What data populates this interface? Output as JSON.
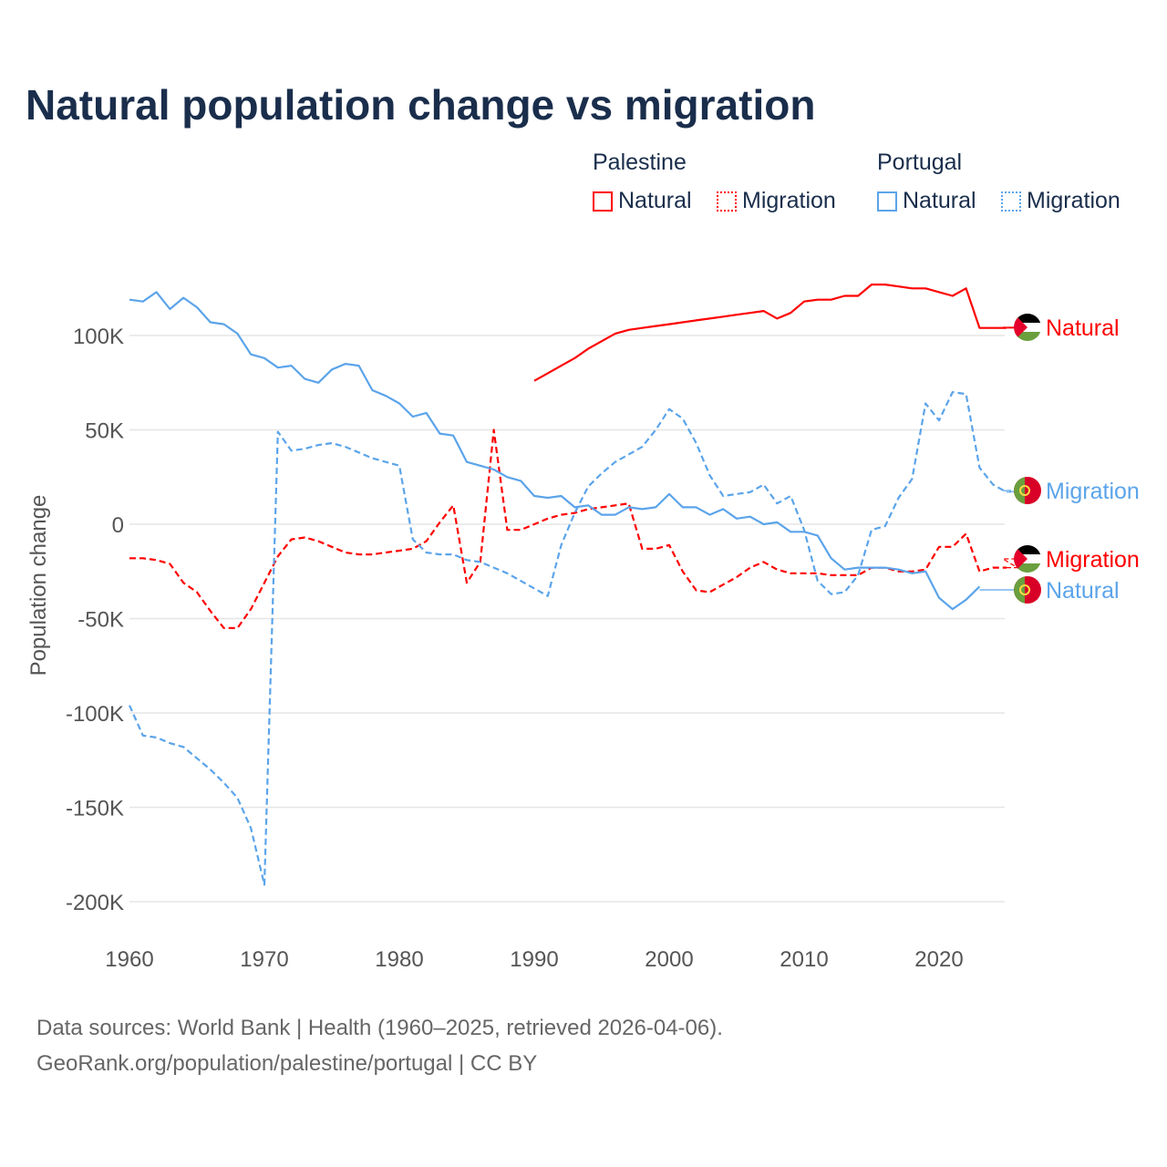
{
  "title": "Natural population change vs migration",
  "legend": {
    "groups": [
      {
        "name": "Palestine",
        "color": "#ff0000",
        "items": [
          "Natural",
          "Migration"
        ]
      },
      {
        "name": "Portugal",
        "color": "#5ba4ea",
        "items": [
          "Natural",
          "Migration"
        ]
      }
    ]
  },
  "footer": {
    "line1": "Data sources: World Bank | Health (1960–2025, retrieved 2026-04-06).",
    "line2": "GeoRank.org/population/palestine/portugal | CC BY"
  },
  "chart_data": {
    "type": "line",
    "title": "Natural population change vs migration",
    "xlabel": "",
    "ylabel": "Population change",
    "xlim": [
      1960,
      2025
    ],
    "ylim": [
      -200000,
      130000
    ],
    "x_ticks": [
      1960,
      1970,
      1980,
      1990,
      2000,
      2010,
      2020
    ],
    "x_tick_labels": [
      "1960",
      "1970",
      "1980",
      "1990",
      "2000",
      "2010",
      "2020"
    ],
    "y_ticks": [
      100000,
      50000,
      0,
      -50000,
      -100000,
      -150000,
      -200000
    ],
    "y_tick_labels": [
      "100K",
      "50K",
      "0",
      "-50K",
      "-100K",
      "-150K",
      "-200K"
    ],
    "grid": true,
    "units": "thousands",
    "series": [
      {
        "name": "Palestine Natural",
        "label": "Natural",
        "country": "Palestine",
        "color": "#ff0000",
        "dash": false,
        "start": 1990,
        "values": [
          76,
          80,
          84,
          88,
          93,
          97,
          101,
          103,
          104,
          105,
          106,
          107,
          108,
          109,
          110,
          111,
          112,
          113,
          109,
          112,
          118,
          119,
          119,
          121,
          121,
          127,
          127,
          126,
          125,
          125,
          123,
          121,
          125,
          104,
          104,
          104
        ]
      },
      {
        "name": "Palestine Migration",
        "label": "Migration",
        "country": "Palestine",
        "color": "#ff0000",
        "dash": true,
        "start": 1960,
        "values": [
          -18,
          -18,
          -19,
          -21,
          -31,
          -36,
          -46,
          -55,
          -55,
          -45,
          -31,
          -17,
          -8,
          -7,
          -9,
          -12,
          -15,
          -16,
          -16,
          -15,
          -14,
          -13,
          -9,
          1,
          10,
          -31,
          -20,
          50,
          -3,
          -3,
          0,
          3,
          5,
          6,
          8,
          9,
          10,
          11,
          -13,
          -13,
          -11,
          -25,
          -35,
          -36,
          -32,
          -28,
          -23,
          -20,
          -24,
          -26,
          -26,
          -26,
          -27,
          -27,
          -27,
          -23,
          -23,
          -25,
          -25,
          -24,
          -12,
          -12,
          -5,
          -25,
          -23,
          -23
        ]
      },
      {
        "name": "Portugal Natural",
        "label": "Natural",
        "country": "Portugal",
        "color": "#5ba4ea",
        "dash": false,
        "start": 1960,
        "values": [
          119,
          118,
          123,
          114,
          120,
          115,
          107,
          106,
          101,
          90,
          88,
          83,
          84,
          77,
          75,
          82,
          85,
          84,
          71,
          68,
          64,
          57,
          59,
          48,
          47,
          33,
          31,
          29,
          25,
          23,
          15,
          14,
          15,
          9,
          10,
          5,
          5,
          9,
          8,
          9,
          16,
          9,
          9,
          5,
          8,
          3,
          4,
          0,
          1,
          -4,
          -4,
          -6,
          -18,
          -24,
          -23,
          -23,
          -23,
          -24,
          -26,
          -25,
          -39,
          -45,
          -40,
          -33
        ]
      },
      {
        "name": "Portugal Migration",
        "label": "Migration",
        "country": "Portugal",
        "color": "#5ba4ea",
        "dash": true,
        "start": 1960,
        "values": [
          -96,
          -112,
          -113,
          -116,
          -118,
          -124,
          -130,
          -137,
          -145,
          -161,
          -191,
          49,
          39,
          40,
          42,
          43,
          41,
          38,
          35,
          33,
          31,
          -8,
          -15,
          -16,
          -16,
          -19,
          -20,
          -23,
          -26,
          -30,
          -34,
          -38,
          -11,
          6,
          20,
          27,
          33,
          37,
          41,
          50,
          61,
          56,
          43,
          26,
          15,
          16,
          17,
          21,
          11,
          15,
          -3,
          -30,
          -37,
          -36,
          -27,
          -3,
          -1,
          14,
          24,
          64,
          55,
          70,
          69,
          30,
          21,
          17
        ]
      }
    ]
  }
}
